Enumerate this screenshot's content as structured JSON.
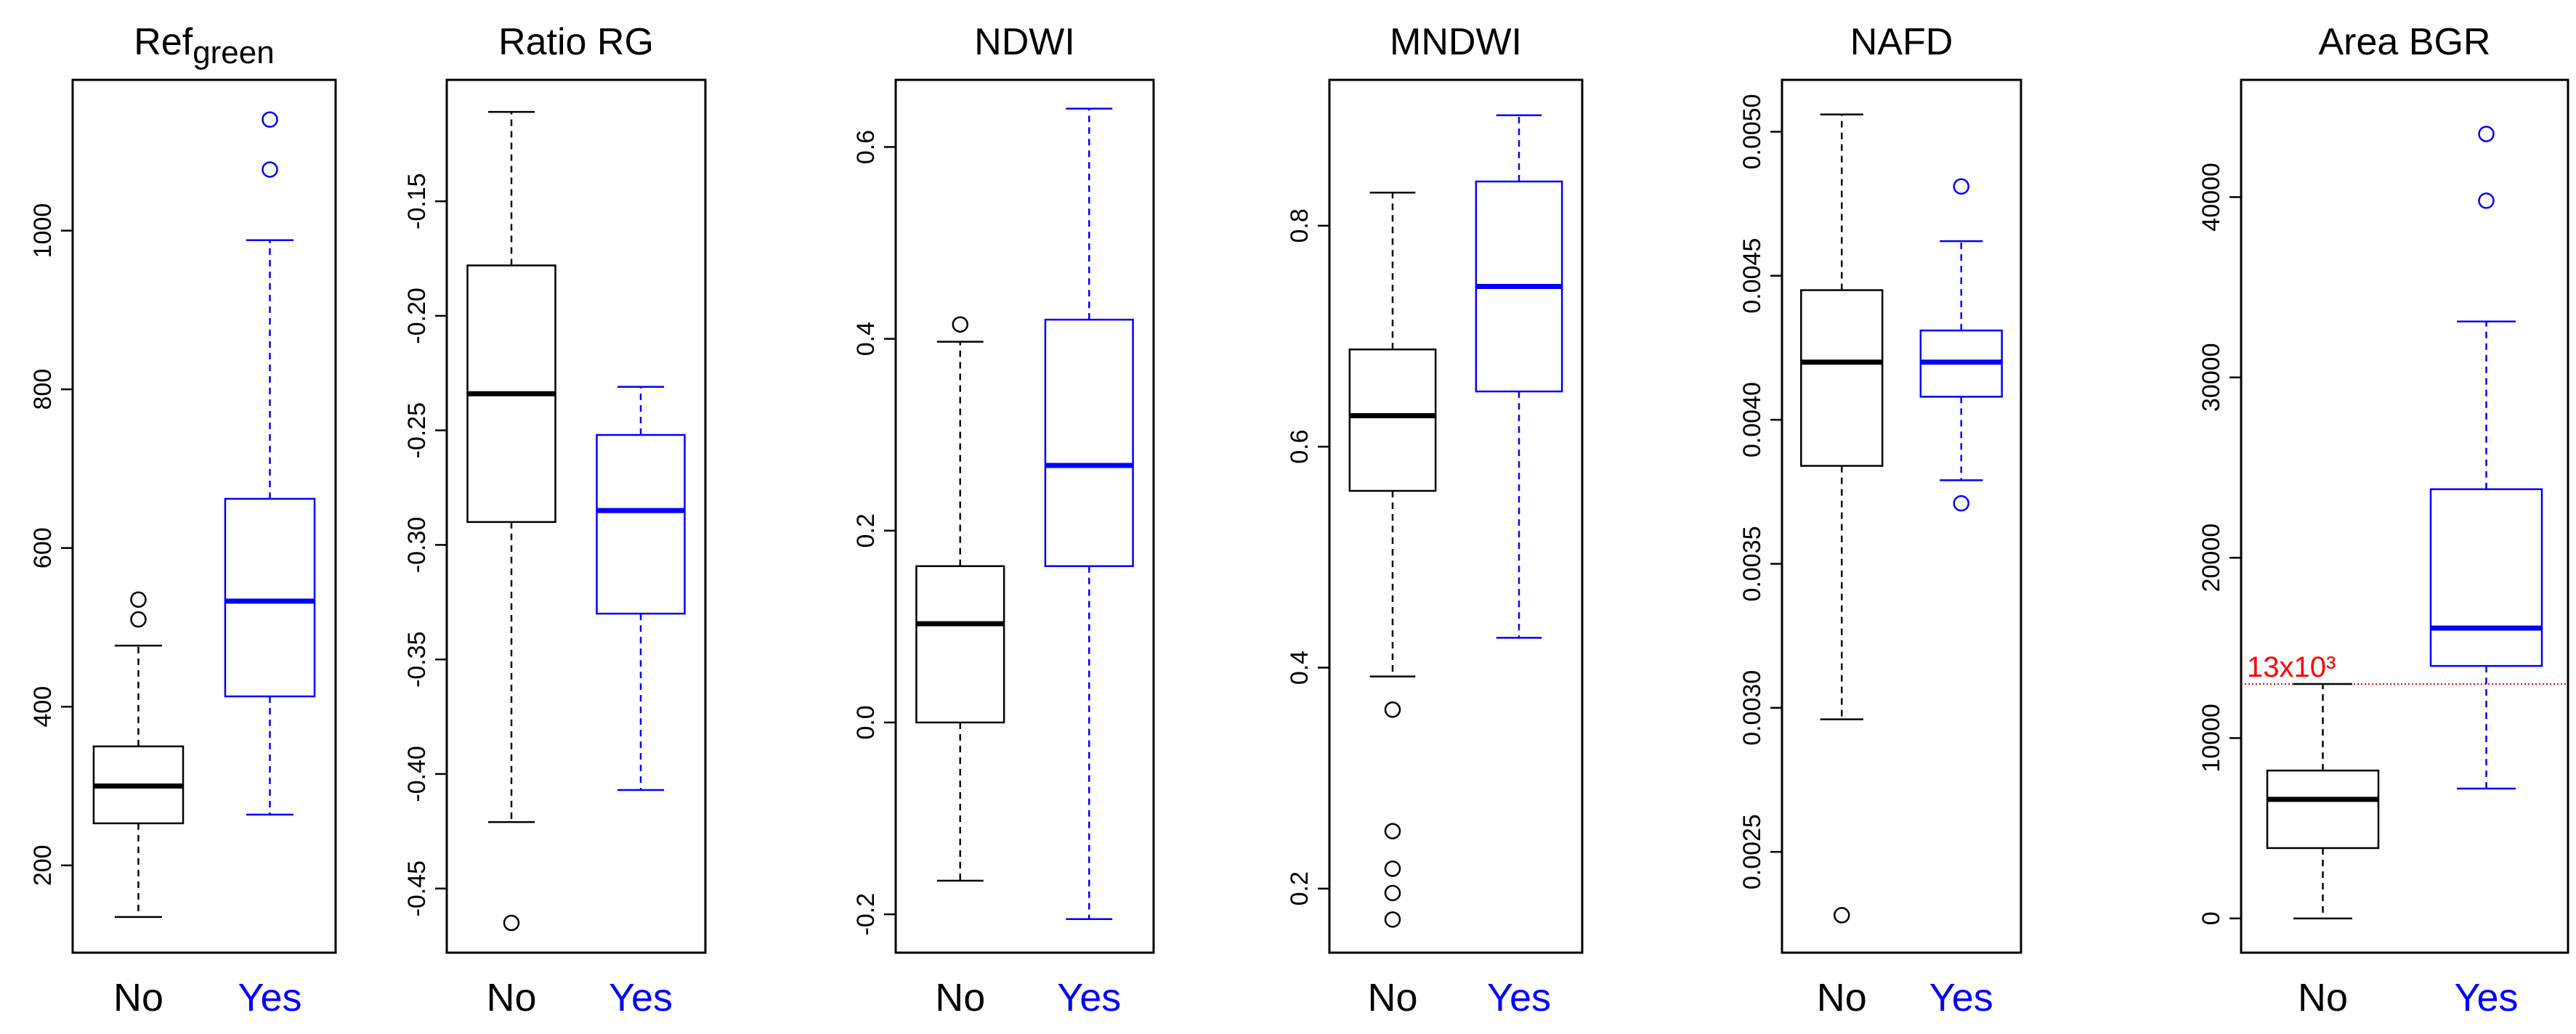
{
  "chart_data": [
    {
      "type": "boxplot",
      "title": "Ref",
      "title_sub": "green",
      "ylim": [
        90,
        1190
      ],
      "yticks": [
        200,
        400,
        600,
        800,
        1000
      ],
      "ytick_labels": [
        "200",
        "400",
        "600",
        "800",
        "1000"
      ],
      "categories": [
        "No",
        "Yes"
      ],
      "colors": [
        "#000000",
        "#0000ff"
      ],
      "series": [
        {
          "name": "No",
          "whisker_low": 135,
          "q1": 253,
          "median": 300,
          "q3": 350,
          "whisker_high": 477,
          "outliers": [
            510,
            535
          ]
        },
        {
          "name": "Yes",
          "whisker_low": 264,
          "q1": 413,
          "median": 533,
          "q3": 662,
          "whisker_high": 988,
          "outliers": [
            1077,
            1140
          ]
        }
      ]
    },
    {
      "type": "boxplot",
      "title": "Ratio RG",
      "ylim": [
        -0.478,
        -0.097
      ],
      "yticks": [
        -0.45,
        -0.4,
        -0.35,
        -0.3,
        -0.25,
        -0.2,
        -0.15
      ],
      "ytick_labels": [
        "-0.45",
        "-0.40",
        "-0.35",
        "-0.30",
        "-0.25",
        "-0.20",
        "-0.15"
      ],
      "categories": [
        "No",
        "Yes"
      ],
      "colors": [
        "#000000",
        "#0000ff"
      ],
      "series": [
        {
          "name": "No",
          "whisker_low": -0.421,
          "q1": -0.29,
          "median": -0.234,
          "q3": -0.178,
          "whisker_high": -0.111,
          "outliers": [
            -0.465
          ]
        },
        {
          "name": "Yes",
          "whisker_low": -0.407,
          "q1": -0.33,
          "median": -0.285,
          "q3": -0.252,
          "whisker_high": -0.231,
          "outliers": []
        }
      ]
    },
    {
      "type": "boxplot",
      "title": "NDWI",
      "ylim": [
        -0.24,
        0.67
      ],
      "yticks": [
        -0.2,
        0.0,
        0.2,
        0.4,
        0.6
      ],
      "ytick_labels": [
        "-0.2",
        "0.0",
        "0.2",
        "0.4",
        "0.6"
      ],
      "categories": [
        "No",
        "Yes"
      ],
      "colors": [
        "#000000",
        "#0000ff"
      ],
      "series": [
        {
          "name": "No",
          "whisker_low": -0.165,
          "q1": 0.0,
          "median": 0.103,
          "q3": 0.163,
          "whisker_high": 0.397,
          "outliers": [
            0.415
          ]
        },
        {
          "name": "Yes",
          "whisker_low": -0.205,
          "q1": 0.163,
          "median": 0.268,
          "q3": 0.42,
          "whisker_high": 0.64,
          "outliers": []
        }
      ]
    },
    {
      "type": "boxplot",
      "title": "MNDWI",
      "ylim": [
        0.142,
        0.932
      ],
      "yticks": [
        0.2,
        0.4,
        0.6,
        0.8
      ],
      "ytick_labels": [
        "0.2",
        "0.4",
        "0.6",
        "0.8"
      ],
      "categories": [
        "No",
        "Yes"
      ],
      "colors": [
        "#000000",
        "#0000ff"
      ],
      "series": [
        {
          "name": "No",
          "whisker_low": 0.392,
          "q1": 0.56,
          "median": 0.628,
          "q3": 0.688,
          "whisker_high": 0.83,
          "outliers": [
            0.362,
            0.252,
            0.218,
            0.196,
            0.172
          ]
        },
        {
          "name": "Yes",
          "whisker_low": 0.427,
          "q1": 0.65,
          "median": 0.745,
          "q3": 0.84,
          "whisker_high": 0.9,
          "outliers": []
        }
      ]
    },
    {
      "type": "boxplot",
      "title": "NAFD",
      "ylim": [
        0.00215,
        0.00518
      ],
      "yticks": [
        0.0025,
        0.003,
        0.0035,
        0.004,
        0.0045,
        0.005
      ],
      "ytick_labels": [
        "0.0025",
        "0.0030",
        "0.0035",
        "0.0040",
        "0.0045",
        "0.0050"
      ],
      "categories": [
        "No",
        "Yes"
      ],
      "colors": [
        "#000000",
        "#0000ff"
      ],
      "series": [
        {
          "name": "No",
          "whisker_low": 0.00296,
          "q1": 0.00384,
          "median": 0.0042,
          "q3": 0.00445,
          "whisker_high": 0.00506,
          "outliers": [
            0.00228
          ]
        },
        {
          "name": "Yes",
          "whisker_low": 0.00379,
          "q1": 0.00408,
          "median": 0.0042,
          "q3": 0.00431,
          "whisker_high": 0.00462,
          "outliers": [
            0.00481,
            0.00371
          ]
        }
      ]
    },
    {
      "type": "boxplot",
      "title": "Area BGR",
      "ylim": [
        -1900,
        46500
      ],
      "yticks": [
        0,
        10000,
        20000,
        30000,
        40000
      ],
      "ytick_labels": [
        "0",
        "10000",
        "20000",
        "30000",
        "40000"
      ],
      "categories": [
        "No",
        "Yes"
      ],
      "colors": [
        "#000000",
        "#0000ff"
      ],
      "series": [
        {
          "name": "No",
          "whisker_low": 0,
          "q1": 3900,
          "median": 6600,
          "q3": 8200,
          "whisker_high": 13000,
          "outliers": []
        },
        {
          "name": "Yes",
          "whisker_low": 7200,
          "q1": 14000,
          "median": 16100,
          "q3": 23800,
          "whisker_high": 33100,
          "outliers": [
            39800,
            43500
          ]
        }
      ],
      "reference_line": {
        "value": 13000,
        "label": "13x10³",
        "color": "#ff0000"
      }
    }
  ]
}
